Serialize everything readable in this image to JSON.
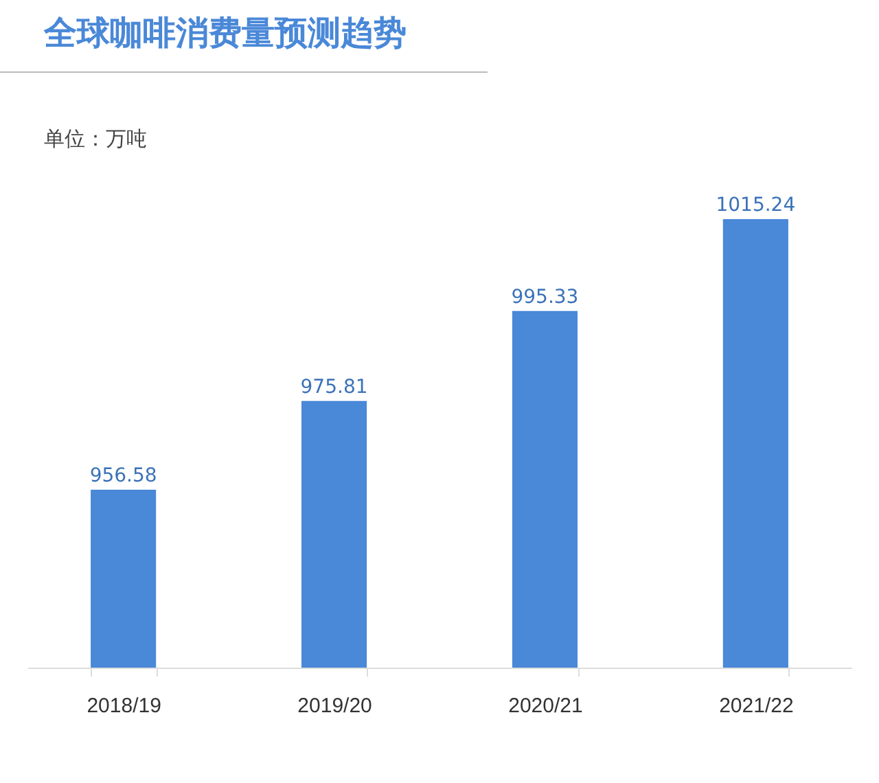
{
  "chart_data": {
    "type": "bar",
    "title": "全球咖啡消费量预测趋势",
    "subtitle": "单位：万吨",
    "categories": [
      "2018/19",
      "2019/20",
      "2020/21",
      "2021/22"
    ],
    "values": [
      956.58,
      975.81,
      995.33,
      1015.24
    ],
    "color": "#4a88d8",
    "ylim": [
      918,
      1030
    ],
    "data_labels": true,
    "grid": false,
    "tick_labels": "x"
  }
}
